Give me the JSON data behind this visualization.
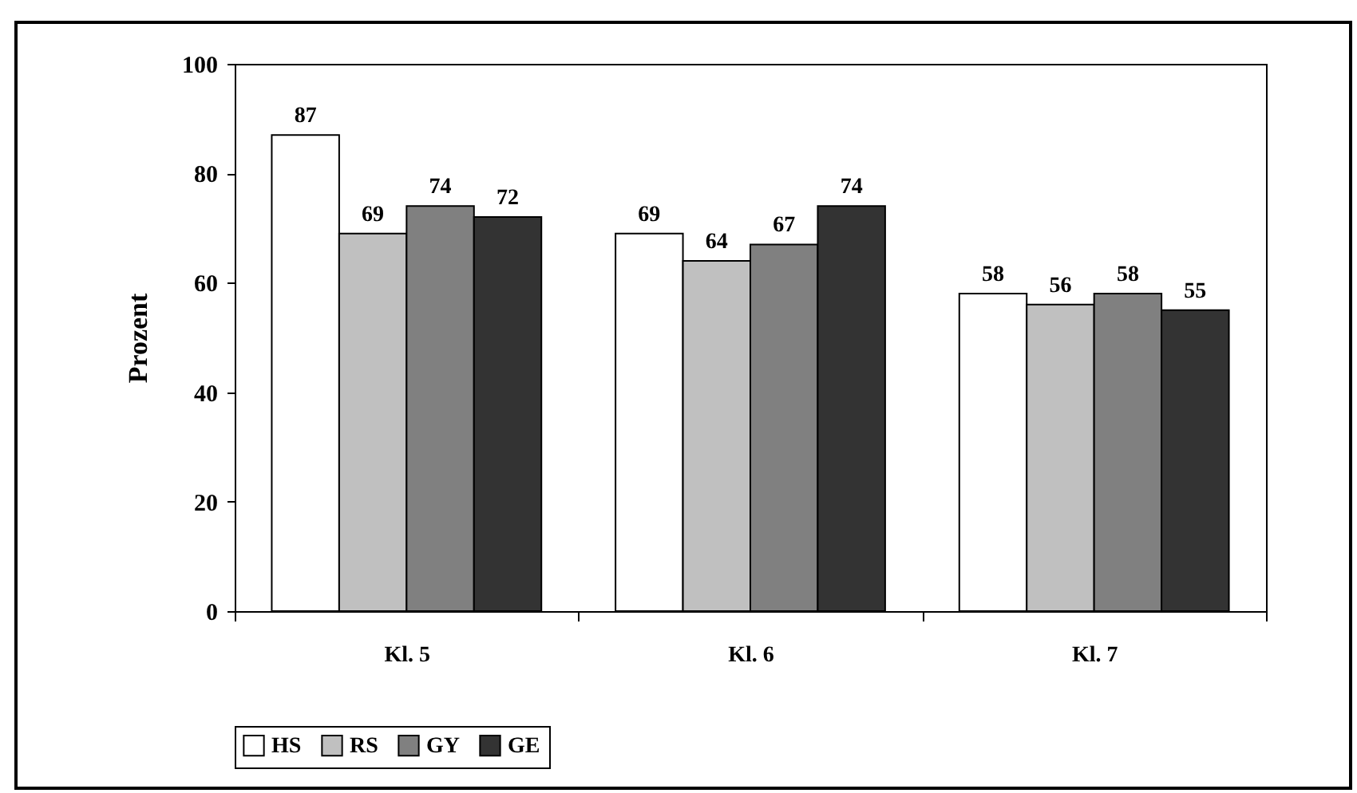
{
  "chart_data": {
    "type": "bar",
    "ylabel": "Prozent",
    "categories": [
      "Kl. 5",
      "Kl. 6",
      "Kl. 7"
    ],
    "series": [
      {
        "name": "HS",
        "color": "#ffffff",
        "values": [
          87,
          69,
          58
        ]
      },
      {
        "name": "RS",
        "color": "#c0c0c0",
        "values": [
          69,
          64,
          56
        ]
      },
      {
        "name": "GY",
        "color": "#808080",
        "values": [
          74,
          67,
          58
        ]
      },
      {
        "name": "GE",
        "color": "#333333",
        "values": [
          72,
          74,
          55
        ]
      }
    ],
    "ylim": [
      0,
      100
    ],
    "yticks": [
      0,
      20,
      40,
      60,
      80,
      100
    ],
    "data_labels": true,
    "legend": "bottom"
  }
}
